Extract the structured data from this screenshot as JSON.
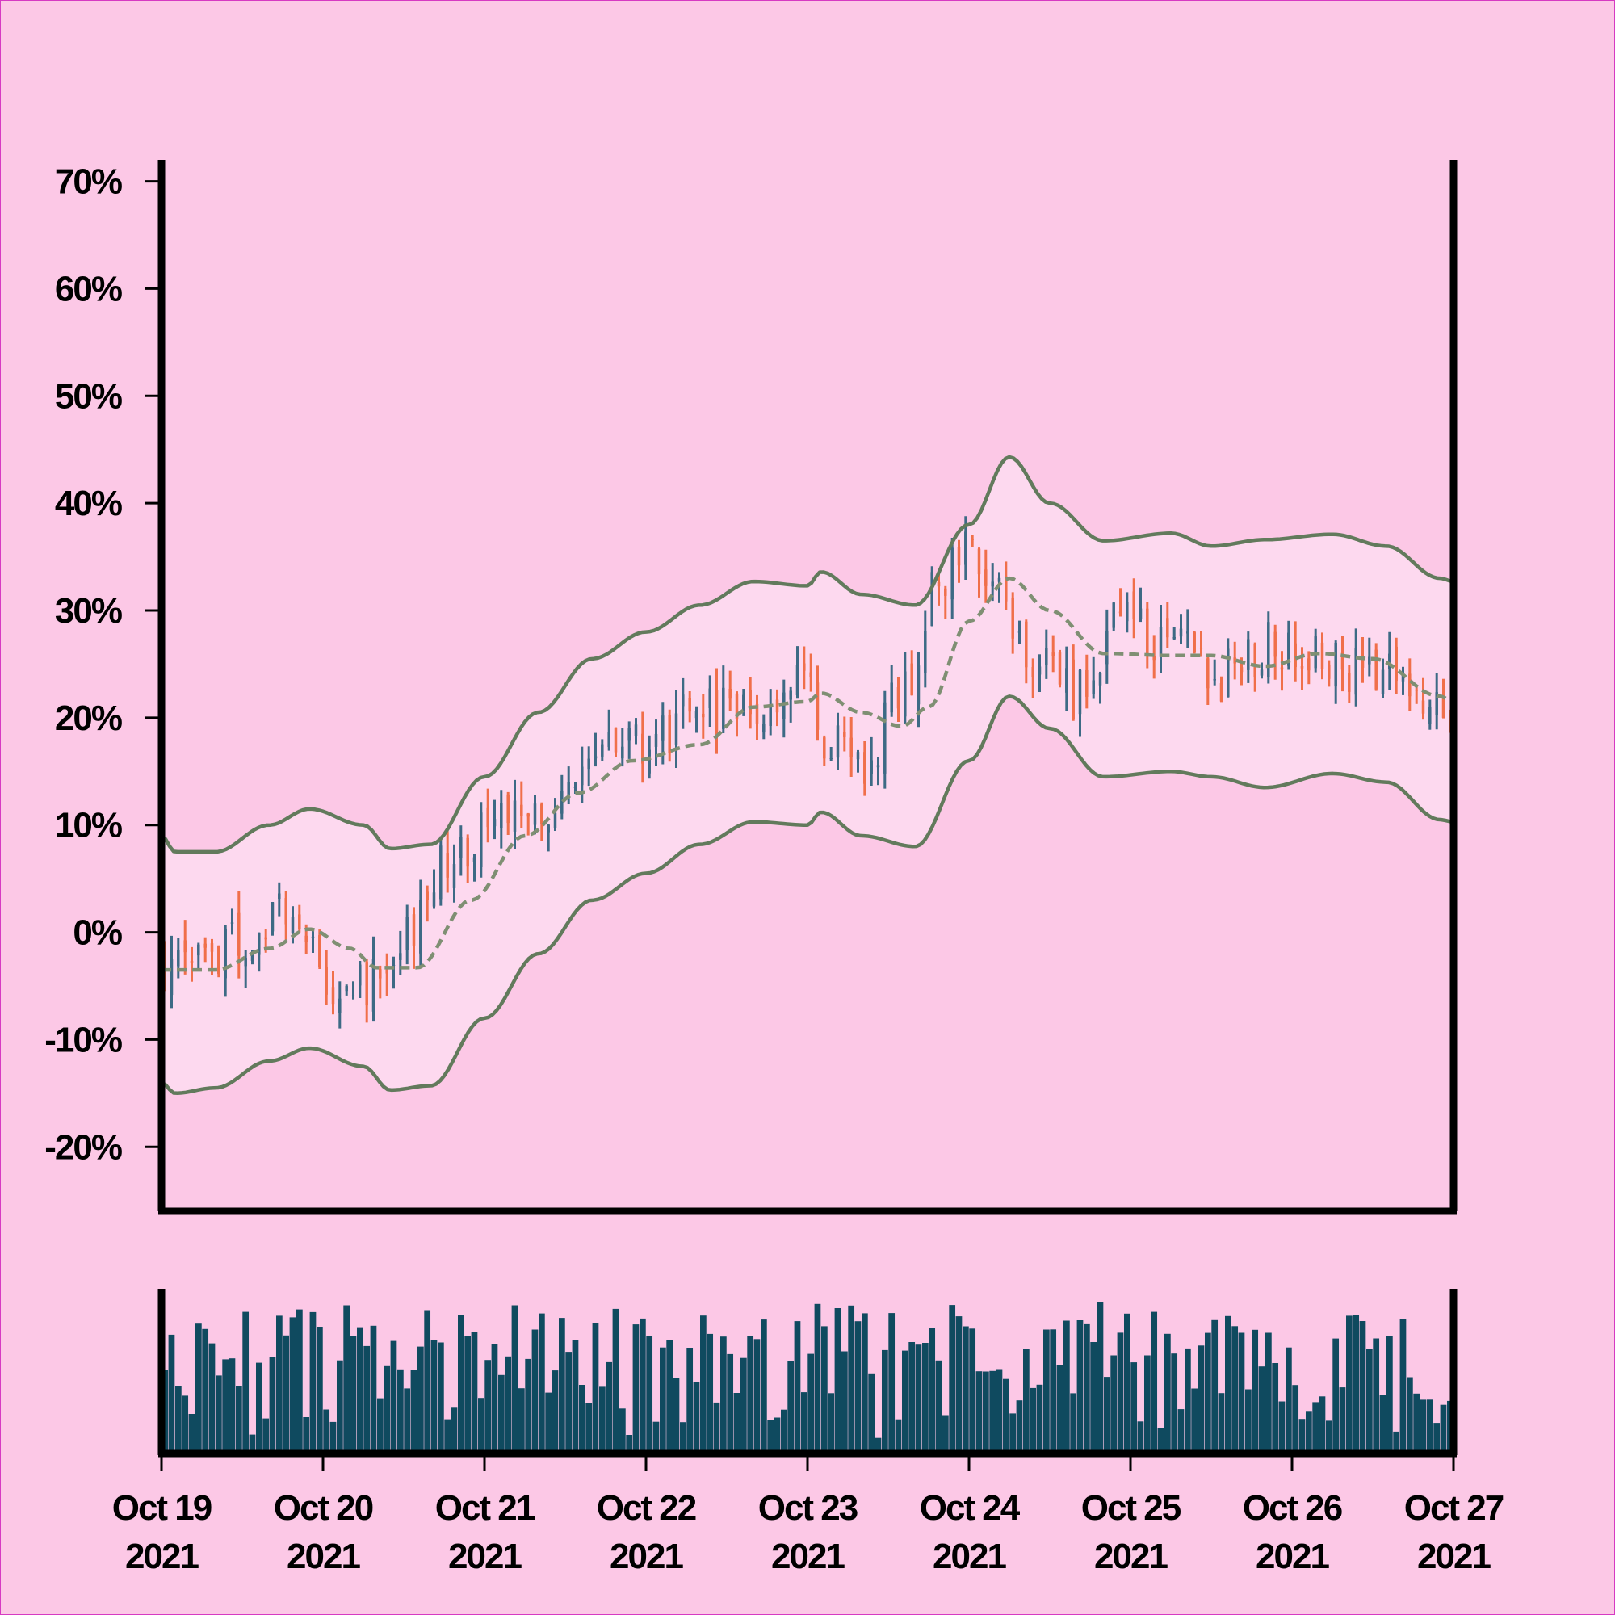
{
  "chart_data": {
    "type": "ohlc",
    "title": "",
    "xlabel": "",
    "ylabel": "",
    "y_format": "percent",
    "ylim": [
      -26,
      72
    ],
    "y_ticks": [
      -20,
      -10,
      0,
      10,
      20,
      30,
      40,
      50,
      60,
      70
    ],
    "y_tick_labels": [
      "-20%",
      "-10%",
      "0%",
      "10%",
      "20%",
      "30%",
      "40%",
      "50%",
      "60%",
      "70%"
    ],
    "x_range": [
      "2021-10-19 00:00",
      "2021-10-27 00:00"
    ],
    "x_ticks": [
      {
        "line1": "Oct 19",
        "line2": "2021"
      },
      {
        "line1": "Oct 20",
        "line2": "2021"
      },
      {
        "line1": "Oct 21",
        "line2": "2021"
      },
      {
        "line1": "Oct 22",
        "line2": "2021"
      },
      {
        "line1": "Oct 23",
        "line2": "2021"
      },
      {
        "line1": "Oct 24",
        "line2": "2021"
      },
      {
        "line1": "Oct 25",
        "line2": "2021"
      },
      {
        "line1": "Oct 26",
        "line2": "2021"
      },
      {
        "line1": "Oct 27",
        "line2": "2021"
      }
    ],
    "bar_interval_hours": 1,
    "close_path_anchors": [
      {
        "time": "2021-10-19 00:00",
        "value": -3
      },
      {
        "time": "2021-10-19 12:00",
        "value": -1
      },
      {
        "time": "2021-10-19 20:00",
        "value": 2
      },
      {
        "time": "2021-10-20 02:00",
        "value": -6
      },
      {
        "time": "2021-10-20 07:00",
        "value": -5
      },
      {
        "time": "2021-10-20 12:00",
        "value": 0
      },
      {
        "time": "2021-10-20 19:00",
        "value": 7
      },
      {
        "time": "2021-10-21 02:00",
        "value": 11
      },
      {
        "time": "2021-10-21 08:00",
        "value": 12
      },
      {
        "time": "2021-10-21 16:00",
        "value": 16
      },
      {
        "time": "2021-10-22 00:00",
        "value": 17
      },
      {
        "time": "2021-10-22 08:00",
        "value": 21
      },
      {
        "time": "2021-10-22 16:00",
        "value": 21
      },
      {
        "time": "2021-10-22 22:00",
        "value": 24
      },
      {
        "time": "2021-10-23 04:00",
        "value": 17
      },
      {
        "time": "2021-10-23 08:00",
        "value": 15
      },
      {
        "time": "2021-10-23 14:00",
        "value": 22
      },
      {
        "time": "2021-10-23 20:00",
        "value": 33
      },
      {
        "time": "2021-10-23 22:00",
        "value": 36
      },
      {
        "time": "2021-10-24 04:00",
        "value": 31
      },
      {
        "time": "2021-10-24 10:00",
        "value": 26
      },
      {
        "time": "2021-10-24 16:00",
        "value": 22
      },
      {
        "time": "2021-10-24 22:00",
        "value": 29
      },
      {
        "time": "2021-10-25 06:00",
        "value": 26
      },
      {
        "time": "2021-10-25 14:00",
        "value": 24
      },
      {
        "time": "2021-10-25 22:00",
        "value": 27
      },
      {
        "time": "2021-10-26 06:00",
        "value": 25
      },
      {
        "time": "2021-10-26 14:00",
        "value": 24
      },
      {
        "time": "2021-10-26 22:00",
        "value": 20
      },
      {
        "time": "2021-10-27 00:00",
        "value": 22
      }
    ],
    "bollinger": {
      "middle": [
        {
          "time": "2021-10-19 00:00",
          "value": -3.5
        },
        {
          "time": "2021-10-19 08:00",
          "value": -3.5
        },
        {
          "time": "2021-10-19 16:00",
          "value": -1.5
        },
        {
          "time": "2021-10-19 22:00",
          "value": 0.3
        },
        {
          "time": "2021-10-20 04:00",
          "value": -1.5
        },
        {
          "time": "2021-10-20 08:00",
          "value": -3.3
        },
        {
          "time": "2021-10-20 14:00",
          "value": -3.3
        },
        {
          "time": "2021-10-20 22:00",
          "value": 3
        },
        {
          "time": "2021-10-21 06:00",
          "value": 9
        },
        {
          "time": "2021-10-21 14:00",
          "value": 13
        },
        {
          "time": "2021-10-21 22:00",
          "value": 16
        },
        {
          "time": "2021-10-22 08:00",
          "value": 17.5
        },
        {
          "time": "2021-10-22 16:00",
          "value": 21
        },
        {
          "time": "2021-10-23 00:00",
          "value": 21.5
        },
        {
          "time": "2021-10-23 02:00",
          "value": 22.3
        },
        {
          "time": "2021-10-23 08:00",
          "value": 20.5
        },
        {
          "time": "2021-10-23 14:00",
          "value": 19.2
        },
        {
          "time": "2021-10-23 18:00",
          "value": 21
        },
        {
          "time": "2021-10-24 00:00",
          "value": 29
        },
        {
          "time": "2021-10-24 06:00",
          "value": 33
        },
        {
          "time": "2021-10-24 12:00",
          "value": 30
        },
        {
          "time": "2021-10-24 20:00",
          "value": 26
        },
        {
          "time": "2021-10-25 06:00",
          "value": 25.8
        },
        {
          "time": "2021-10-25 12:00",
          "value": 25.8
        },
        {
          "time": "2021-10-25 20:00",
          "value": 24.8
        },
        {
          "time": "2021-10-26 04:00",
          "value": 26
        },
        {
          "time": "2021-10-26 12:00",
          "value": 25.5
        },
        {
          "time": "2021-10-26 22:00",
          "value": 22
        },
        {
          "time": "2021-10-27 00:00",
          "value": 21.5
        }
      ],
      "upper": [
        {
          "time": "2021-10-19 00:00",
          "value": 9
        },
        {
          "time": "2021-10-19 02:00",
          "value": 7.5
        },
        {
          "time": "2021-10-19 08:00",
          "value": 7.5
        },
        {
          "time": "2021-10-19 16:00",
          "value": 10
        },
        {
          "time": "2021-10-19 22:00",
          "value": 11.5
        },
        {
          "time": "2021-10-20 06:00",
          "value": 10
        },
        {
          "time": "2021-10-20 10:00",
          "value": 7.8
        },
        {
          "time": "2021-10-20 16:00",
          "value": 8.2
        },
        {
          "time": "2021-10-21 00:00",
          "value": 14.5
        },
        {
          "time": "2021-10-21 08:00",
          "value": 20.5
        },
        {
          "time": "2021-10-21 16:00",
          "value": 25.5
        },
        {
          "time": "2021-10-22 00:00",
          "value": 28
        },
        {
          "time": "2021-10-22 08:00",
          "value": 30.5
        },
        {
          "time": "2021-10-22 16:00",
          "value": 32.7
        },
        {
          "time": "2021-10-23 00:00",
          "value": 32.3
        },
        {
          "time": "2021-10-23 02:00",
          "value": 33.6
        },
        {
          "time": "2021-10-23 08:00",
          "value": 31.5
        },
        {
          "time": "2021-10-23 16:00",
          "value": 30.5
        },
        {
          "time": "2021-10-24 00:00",
          "value": 38
        },
        {
          "time": "2021-10-24 06:00",
          "value": 44.3
        },
        {
          "time": "2021-10-24 12:00",
          "value": 40
        },
        {
          "time": "2021-10-24 20:00",
          "value": 36.5
        },
        {
          "time": "2021-10-25 06:00",
          "value": 37.2
        },
        {
          "time": "2021-10-25 12:00",
          "value": 36
        },
        {
          "time": "2021-10-25 20:00",
          "value": 36.6
        },
        {
          "time": "2021-10-26 06:00",
          "value": 37.1
        },
        {
          "time": "2021-10-26 14:00",
          "value": 36
        },
        {
          "time": "2021-10-26 22:00",
          "value": 33
        },
        {
          "time": "2021-10-27 00:00",
          "value": 32.7
        }
      ],
      "lower": [
        {
          "time": "2021-10-19 00:00",
          "value": -14
        },
        {
          "time": "2021-10-19 02:00",
          "value": -15
        },
        {
          "time": "2021-10-19 08:00",
          "value": -14.5
        },
        {
          "time": "2021-10-19 16:00",
          "value": -12
        },
        {
          "time": "2021-10-19 22:00",
          "value": -10.8
        },
        {
          "time": "2021-10-20 06:00",
          "value": -12.5
        },
        {
          "time": "2021-10-20 10:00",
          "value": -14.7
        },
        {
          "time": "2021-10-20 16:00",
          "value": -14.3
        },
        {
          "time": "2021-10-21 00:00",
          "value": -8
        },
        {
          "time": "2021-10-21 08:00",
          "value": -2
        },
        {
          "time": "2021-10-21 16:00",
          "value": 3
        },
        {
          "time": "2021-10-22 00:00",
          "value": 5.5
        },
        {
          "time": "2021-10-22 08:00",
          "value": 8.2
        },
        {
          "time": "2021-10-22 16:00",
          "value": 10.3
        },
        {
          "time": "2021-10-23 00:00",
          "value": 10
        },
        {
          "time": "2021-10-23 02:00",
          "value": 11.2
        },
        {
          "time": "2021-10-23 08:00",
          "value": 9
        },
        {
          "time": "2021-10-23 16:00",
          "value": 8
        },
        {
          "time": "2021-10-24 00:00",
          "value": 16
        },
        {
          "time": "2021-10-24 06:00",
          "value": 22
        },
        {
          "time": "2021-10-24 12:00",
          "value": 19
        },
        {
          "time": "2021-10-24 20:00",
          "value": 14.5
        },
        {
          "time": "2021-10-25 06:00",
          "value": 15
        },
        {
          "time": "2021-10-25 12:00",
          "value": 14.5
        },
        {
          "time": "2021-10-25 20:00",
          "value": 13.5
        },
        {
          "time": "2021-10-26 06:00",
          "value": 14.8
        },
        {
          "time": "2021-10-26 14:00",
          "value": 14
        },
        {
          "time": "2021-10-26 22:00",
          "value": 10.5
        },
        {
          "time": "2021-10-27 00:00",
          "value": 10.3
        }
      ]
    },
    "volume_panel": true,
    "grid": false
  },
  "colors": {
    "background": "#fcc8e6",
    "frame_border": "#d63ac2",
    "band_fill": "#fdd9ef",
    "band_line": "#627a5c",
    "middle_line": "#7f8f73",
    "bar_up": "#3d6a85",
    "bar_down": "#f06f4a",
    "volume": "#0f4a5f",
    "axis": "#000000"
  }
}
